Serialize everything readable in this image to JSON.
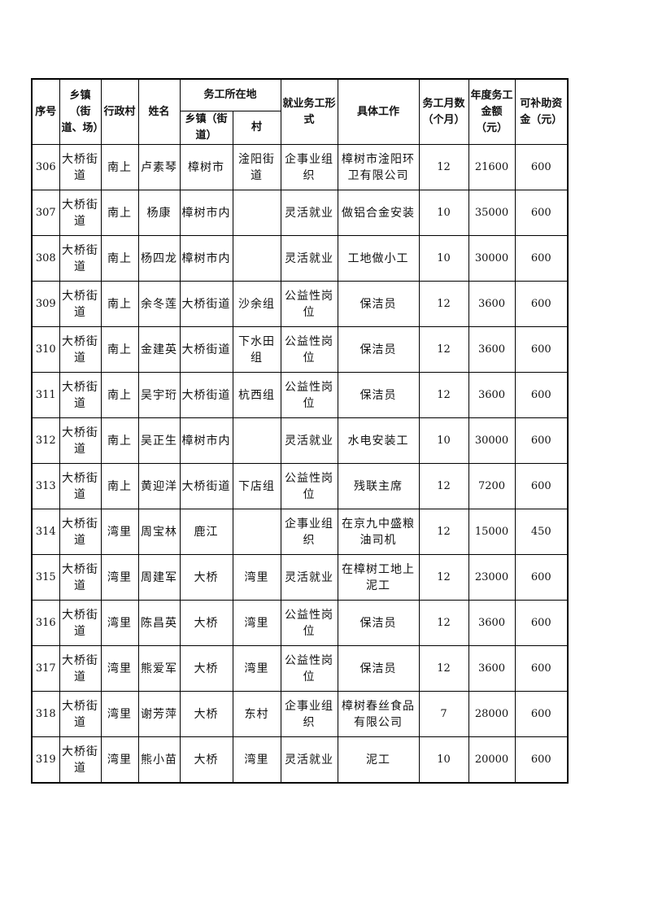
{
  "headers": {
    "seq": "序号",
    "town": "乡镇（街道、场）",
    "village": "行政村",
    "name": "姓名",
    "work_location": "务工所在地",
    "work_town": "乡镇（街道）",
    "work_village": "村",
    "employment_form": "就业务工形式",
    "job": "具体工作",
    "months": "务工月数（个月）",
    "annual_amount": "年度务工金额（元）",
    "subsidy": "可补助资金（元）"
  },
  "rows": [
    {
      "seq": "306",
      "town": "大桥街道",
      "village": "南上",
      "name": "卢素琴",
      "work_town": "樟树市",
      "work_village": "淦阳街道",
      "form": "企事业组织",
      "job": "樟树市淦阳环卫有限公司",
      "months": "12",
      "amount": "21600",
      "subsidy": "600"
    },
    {
      "seq": "307",
      "town": "大桥街道",
      "village": "南上",
      "name": "杨康",
      "work_town": "樟树市内",
      "work_village": "",
      "form": "灵活就业",
      "job": "做铝合金安装",
      "months": "10",
      "amount": "35000",
      "subsidy": "600"
    },
    {
      "seq": "308",
      "town": "大桥街道",
      "village": "南上",
      "name": "杨四龙",
      "work_town": "樟树市内",
      "work_village": "",
      "form": "灵活就业",
      "job": "工地做小工",
      "months": "10",
      "amount": "30000",
      "subsidy": "600"
    },
    {
      "seq": "309",
      "town": "大桥街道",
      "village": "南上",
      "name": "余冬莲",
      "work_town": "大桥街道",
      "work_village": "沙余组",
      "form": "公益性岗位",
      "job": "保洁员",
      "months": "12",
      "amount": "3600",
      "subsidy": "600"
    },
    {
      "seq": "310",
      "town": "大桥街道",
      "village": "南上",
      "name": "金建英",
      "work_town": "大桥街道",
      "work_village": "下水田组",
      "form": "公益性岗位",
      "job": "保洁员",
      "months": "12",
      "amount": "3600",
      "subsidy": "600"
    },
    {
      "seq": "311",
      "town": "大桥街道",
      "village": "南上",
      "name": "吴宇珩",
      "work_town": "大桥街道",
      "work_village": "杭西组",
      "form": "公益性岗位",
      "job": "保洁员",
      "months": "12",
      "amount": "3600",
      "subsidy": "600"
    },
    {
      "seq": "312",
      "town": "大桥街道",
      "village": "南上",
      "name": "吴正生",
      "work_town": "樟树市内",
      "work_village": "",
      "form": "灵活就业",
      "job": "水电安装工",
      "months": "10",
      "amount": "30000",
      "subsidy": "600"
    },
    {
      "seq": "313",
      "town": "大桥街道",
      "village": "南上",
      "name": "黄迎洋",
      "work_town": "大桥街道",
      "work_village": "下店组",
      "form": "公益性岗位",
      "job": "残联主席",
      "months": "12",
      "amount": "7200",
      "subsidy": "600"
    },
    {
      "seq": "314",
      "town": "大桥街道",
      "village": "湾里",
      "name": "周宝林",
      "work_town": "鹿江",
      "work_village": "",
      "form": "企事业组织",
      "job": "在京九中盛粮油司机",
      "months": "12",
      "amount": "15000",
      "subsidy": "450"
    },
    {
      "seq": "315",
      "town": "大桥街道",
      "village": "湾里",
      "name": "周建军",
      "work_town": "大桥",
      "work_village": "湾里",
      "form": "灵活就业",
      "job": "在樟树工地上泥工",
      "months": "12",
      "amount": "23000",
      "subsidy": "600"
    },
    {
      "seq": "316",
      "town": "大桥街道",
      "village": "湾里",
      "name": "陈昌英",
      "work_town": "大桥",
      "work_village": "湾里",
      "form": "公益性岗位",
      "job": "保洁员",
      "months": "12",
      "amount": "3600",
      "subsidy": "600"
    },
    {
      "seq": "317",
      "town": "大桥街道",
      "village": "湾里",
      "name": "熊爱军",
      "work_town": "大桥",
      "work_village": "湾里",
      "form": "公益性岗位",
      "job": "保洁员",
      "months": "12",
      "amount": "3600",
      "subsidy": "600"
    },
    {
      "seq": "318",
      "town": "大桥街道",
      "village": "湾里",
      "name": "谢芳萍",
      "work_town": "大桥",
      "work_village": "东村",
      "form": "企事业组织",
      "job": "樟树春丝食品有限公司",
      "months": "7",
      "amount": "28000",
      "subsidy": "600"
    },
    {
      "seq": "319",
      "town": "大桥街道",
      "village": "湾里",
      "name": "熊小苗",
      "work_town": "大桥",
      "work_village": "湾里",
      "form": "灵活就业",
      "job": "泥工",
      "months": "10",
      "amount": "20000",
      "subsidy": "600"
    }
  ]
}
